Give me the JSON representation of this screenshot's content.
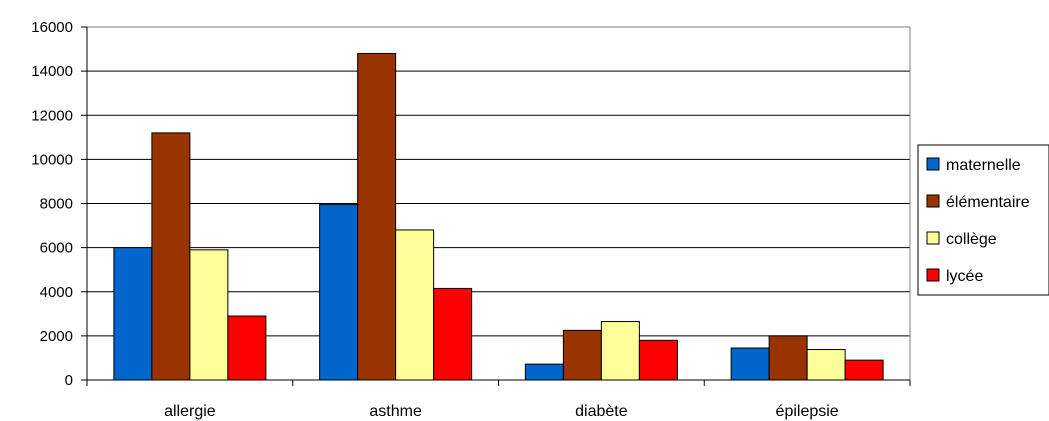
{
  "chart_data": {
    "type": "bar",
    "categories": [
      "allergie",
      "asthme",
      "diabète",
      "épilepsie"
    ],
    "series": [
      {
        "name": "maternelle",
        "color": "#0066CC",
        "values": [
          6000,
          7950,
          720,
          1450
        ]
      },
      {
        "name": "élémentaire",
        "color": "#993300",
        "values": [
          11200,
          14800,
          2250,
          2000
        ]
      },
      {
        "name": "collège",
        "color": "#FFFF99",
        "values": [
          5900,
          6800,
          2650,
          1380
        ]
      },
      {
        "name": "lycée",
        "color": "#FF0000",
        "values": [
          2900,
          4150,
          1800,
          900
        ]
      }
    ],
    "ylim": [
      0,
      16000
    ],
    "yticks": [
      "0",
      "2000",
      "4000",
      "6000",
      "8000",
      "10000",
      "12000",
      "14000",
      "16000"
    ],
    "grid": true,
    "legend_position": "right",
    "title": "",
    "xlabel": "",
    "ylabel": ""
  }
}
